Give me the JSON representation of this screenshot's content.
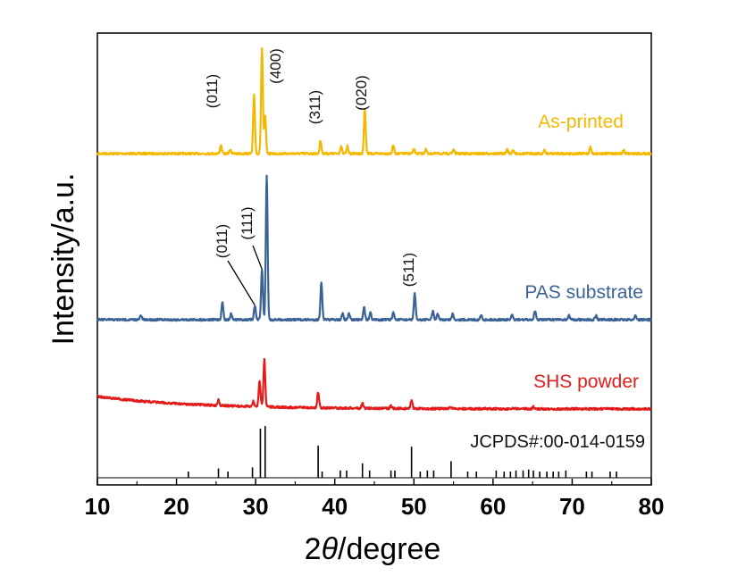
{
  "chart_data": {
    "type": "line",
    "title": "",
    "xlabel_prefix": "2",
    "xlabel_symbol": "θ",
    "xlabel_suffix": "/degree",
    "ylabel": "Intensity/a.u.",
    "xlim": [
      10,
      80
    ],
    "xticks": [
      "10",
      "20",
      "30",
      "40",
      "50",
      "60",
      "70",
      "80"
    ],
    "series": [
      {
        "name": "As-printed",
        "color": "#f5b800",
        "baseline_level": 0.87,
        "peaks": [
          [
            25.6,
            0.08
          ],
          [
            26.8,
            0.04
          ],
          [
            29.8,
            0.56
          ],
          [
            30.8,
            1.0
          ],
          [
            31.2,
            0.35
          ],
          [
            38.2,
            0.12
          ],
          [
            40.8,
            0.07
          ],
          [
            41.6,
            0.07
          ],
          [
            43.8,
            0.42
          ],
          [
            47.4,
            0.08
          ],
          [
            50.0,
            0.04
          ],
          [
            51.5,
            0.04
          ],
          [
            55.0,
            0.04
          ],
          [
            61.8,
            0.04
          ],
          [
            62.5,
            0.03
          ],
          [
            66.5,
            0.03
          ],
          [
            72.3,
            0.06
          ],
          [
            76.5,
            0.03
          ]
        ]
      },
      {
        "name": "PAS substrate",
        "color": "#3b6395",
        "baseline_level": 0.0,
        "peaks": [
          [
            15.5,
            0.03
          ],
          [
            25.8,
            0.12
          ],
          [
            26.9,
            0.04
          ],
          [
            29.9,
            0.1
          ],
          [
            30.8,
            0.35
          ],
          [
            31.4,
            1.0
          ],
          [
            38.3,
            0.26
          ],
          [
            41.0,
            0.04
          ],
          [
            41.8,
            0.04
          ],
          [
            43.7,
            0.09
          ],
          [
            44.5,
            0.05
          ],
          [
            47.4,
            0.05
          ],
          [
            50.1,
            0.18
          ],
          [
            52.4,
            0.06
          ],
          [
            53.0,
            0.04
          ],
          [
            54.9,
            0.04
          ],
          [
            58.5,
            0.03
          ],
          [
            62.4,
            0.03
          ],
          [
            65.3,
            0.06
          ],
          [
            69.6,
            0.03
          ],
          [
            73.0,
            0.03
          ],
          [
            78.0,
            0.03
          ]
        ]
      },
      {
        "name": "SHS powder",
        "color": "#e21b1b",
        "baseline_level": 0.0,
        "peaks": [
          [
            25.3,
            0.09
          ],
          [
            29.7,
            0.08
          ],
          [
            30.5,
            0.41
          ],
          [
            31.1,
            0.73
          ],
          [
            37.9,
            0.24
          ],
          [
            43.5,
            0.08
          ],
          [
            47.1,
            0.04
          ],
          [
            49.7,
            0.13
          ],
          [
            54.6,
            0.03
          ],
          [
            65.1,
            0.03
          ]
        ]
      }
    ],
    "reference": {
      "label": "JCPDS#:00-014-0159",
      "sticks": [
        [
          21.5,
          0.12
        ],
        [
          25.3,
          0.18
        ],
        [
          26.5,
          0.12
        ],
        [
          29.6,
          0.2
        ],
        [
          30.6,
          0.95
        ],
        [
          31.2,
          1.0
        ],
        [
          37.9,
          0.62
        ],
        [
          38.4,
          0.12
        ],
        [
          40.7,
          0.14
        ],
        [
          41.5,
          0.14
        ],
        [
          43.5,
          0.28
        ],
        [
          44.4,
          0.14
        ],
        [
          47.1,
          0.14
        ],
        [
          47.6,
          0.14
        ],
        [
          49.7,
          0.6
        ],
        [
          50.8,
          0.12
        ],
        [
          51.7,
          0.14
        ],
        [
          52.5,
          0.14
        ],
        [
          54.7,
          0.32
        ],
        [
          56.8,
          0.12
        ],
        [
          57.9,
          0.12
        ],
        [
          60.4,
          0.14
        ],
        [
          61.4,
          0.12
        ],
        [
          62.2,
          0.12
        ],
        [
          62.9,
          0.14
        ],
        [
          63.8,
          0.14
        ],
        [
          64.5,
          0.16
        ],
        [
          65.1,
          0.14
        ],
        [
          65.9,
          0.12
        ],
        [
          66.8,
          0.12
        ],
        [
          67.6,
          0.12
        ],
        [
          68.3,
          0.12
        ],
        [
          69.2,
          0.14
        ],
        [
          71.8,
          0.12
        ],
        [
          72.5,
          0.12
        ],
        [
          74.8,
          0.12
        ],
        [
          75.6,
          0.12
        ]
      ]
    },
    "annotations": [
      {
        "text": "(011)",
        "series": "As-printed",
        "x": 25.6
      },
      {
        "text": "(400)",
        "series": "As-printed",
        "x": 31.3
      },
      {
        "text": "(311)",
        "series": "As-printed",
        "x": 38.2
      },
      {
        "text": "(020)",
        "series": "As-printed",
        "x": 43.8
      },
      {
        "text": "(011)",
        "series": "PAS substrate",
        "x": 25.8
      },
      {
        "text": "(111)",
        "series": "PAS substrate",
        "x": 29.2
      },
      {
        "text": "(511)",
        "series": "PAS substrate",
        "x": 50.1
      }
    ]
  }
}
